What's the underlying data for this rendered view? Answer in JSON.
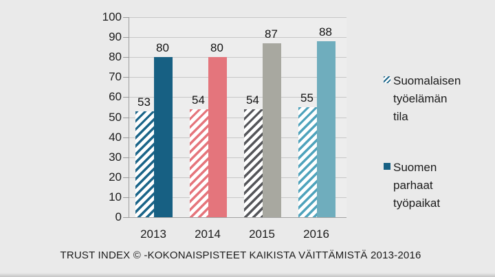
{
  "caption": "TRUST INDEX © -KOKONAISPISTEET KAIKISTA VÄITTÄMISTÄ 2013-2016",
  "legend": {
    "items": [
      {
        "label": "Suomalaisen\ntyöelämän\ntila",
        "swatch": "hatched",
        "color": "#1B6589"
      },
      {
        "label": "Suomen\nparhaat\ntyöpaikat",
        "swatch": "solid",
        "color": "#176083"
      }
    ]
  },
  "chart_data": {
    "type": "bar",
    "title": "",
    "categories": [
      "2013",
      "2014",
      "2015",
      "2016"
    ],
    "series": [
      {
        "name": "Suomalaisen työelämän tila",
        "style": "hatched",
        "values": [
          53,
          54,
          54,
          55
        ]
      },
      {
        "name": "Suomen parhaat työpaikat",
        "style": "solid",
        "values": [
          80,
          80,
          87,
          88
        ]
      }
    ],
    "year_colors": {
      "2013": {
        "solid": "#176083",
        "hatch": "#1B6589"
      },
      "2014": {
        "solid": "#E4757C",
        "hatch": "#E5757C"
      },
      "2015": {
        "solid": "#A8A8A0",
        "hatch": "#55565A"
      },
      "2016": {
        "solid": "#6FADBD",
        "hatch": "#4FA3BC"
      }
    },
    "ylim": [
      0,
      100
    ],
    "yticks": [
      0,
      10,
      20,
      30,
      40,
      50,
      60,
      70,
      80,
      90,
      100
    ],
    "grid": true,
    "value_labels": true,
    "legend_position": "right",
    "xlabel": "",
    "ylabel": ""
  }
}
